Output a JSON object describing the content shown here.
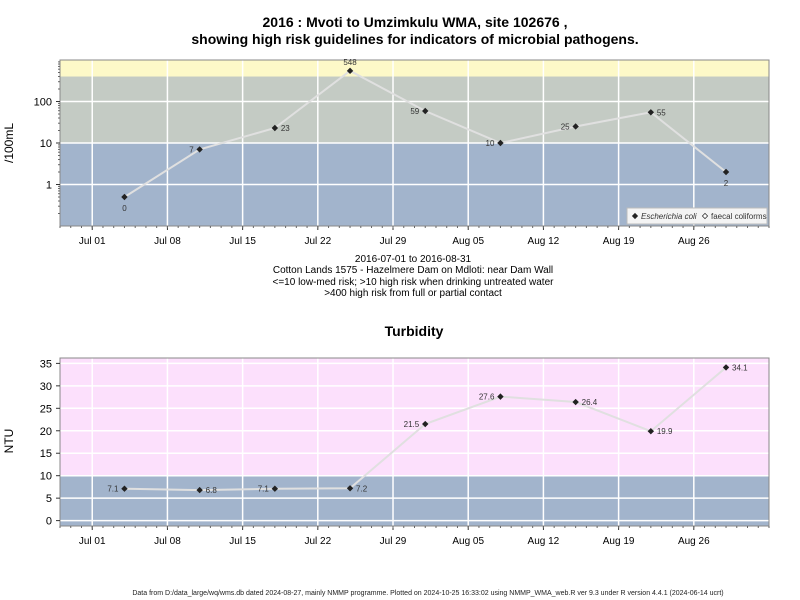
{
  "chart_data": [
    {
      "type": "line",
      "title_line1": "2016 : Mvoti to Umzimkulu WMA, site 102676 ,",
      "title_line2": "showing high risk guidelines for indicators of microbial pathogens.",
      "ylabel": "/100mL",
      "y_scale": "log10",
      "ylim": [
        0.1,
        1000
      ],
      "y_ticks": [
        1,
        10,
        100
      ],
      "y_tick_labels": [
        "1",
        "10",
        "100"
      ],
      "bands": [
        {
          "from": 0.1,
          "to": 10,
          "color": "#a2b4cc"
        },
        {
          "from": 10,
          "to": 400,
          "color": "#c4cbc4"
        },
        {
          "from": 400,
          "to": 1000,
          "color": "#fdf9c8"
        }
      ],
      "x_range": [
        "2016-06-28",
        "2016-09-02"
      ],
      "x_ticks": [
        "2016-07-01",
        "2016-07-08",
        "2016-07-15",
        "2016-07-22",
        "2016-07-29",
        "2016-08-05",
        "2016-08-12",
        "2016-08-19",
        "2016-08-26"
      ],
      "x_tick_labels": [
        "Jul 01",
        "Jul 08",
        "Jul 15",
        "Jul 22",
        "Jul 29",
        "Aug 05",
        "Aug 12",
        "Aug 19",
        "Aug 26"
      ],
      "series": [
        {
          "name": "Escherichia coli",
          "dates": [
            "2016-07-04",
            "2016-07-11",
            "2016-07-18",
            "2016-07-25",
            "2016-08-01",
            "2016-08-08",
            "2016-08-15",
            "2016-08-22",
            "2016-08-29"
          ],
          "values": [
            0.5,
            7,
            23,
            548,
            59,
            10,
            25,
            55,
            2
          ],
          "labels": [
            "0",
            "7",
            "23",
            "548",
            "59",
            "10",
            "25",
            "55",
            "2"
          ],
          "label_side": [
            "below",
            "left",
            "right",
            "above",
            "left",
            "left",
            "left",
            "right",
            "below"
          ]
        }
      ],
      "legend": [
        {
          "name": "Escherichia coli",
          "marker": "diamond-filled"
        },
        {
          "name": "faecal coliforms",
          "marker": "diamond-open"
        }
      ],
      "legend_position": "bottom-right",
      "grid": true,
      "subtitle_lines": [
        "2016-07-01 to 2016-08-31",
        "Cotton Lands 1575 - Hazelmere Dam on Mdloti: near Dam Wall",
        "<=10 low-med risk; >10 high risk when drinking untreated water",
        ">400 high risk from full or partial contact"
      ]
    },
    {
      "type": "line",
      "title": "Turbidity",
      "ylabel": "NTU",
      "ylim": [
        -1.2,
        36.2
      ],
      "y_ticks": [
        0,
        5,
        10,
        15,
        20,
        25,
        30,
        35
      ],
      "y_tick_labels": [
        "0",
        "5",
        "10",
        "15",
        "20",
        "25",
        "30",
        "35"
      ],
      "bands": [
        {
          "from": -1.2,
          "to": 10,
          "color": "#a2b4cc"
        },
        {
          "from": 10,
          "to": 36.2,
          "color": "#fce0fc"
        }
      ],
      "x_range": [
        "2016-06-28",
        "2016-09-02"
      ],
      "x_ticks": [
        "2016-07-01",
        "2016-07-08",
        "2016-07-15",
        "2016-07-22",
        "2016-07-29",
        "2016-08-05",
        "2016-08-12",
        "2016-08-19",
        "2016-08-26"
      ],
      "x_tick_labels": [
        "Jul 01",
        "Jul 08",
        "Jul 15",
        "Jul 22",
        "Jul 29",
        "Aug 05",
        "Aug 12",
        "Aug 19",
        "Aug 26"
      ],
      "series": [
        {
          "dates": [
            "2016-07-04",
            "2016-07-11",
            "2016-07-18",
            "2016-07-25",
            "2016-08-01",
            "2016-08-08",
            "2016-08-15",
            "2016-08-22",
            "2016-08-29"
          ],
          "values": [
            7.1,
            6.8,
            7.1,
            7.2,
            21.5,
            27.6,
            26.4,
            19.9,
            34.1
          ],
          "labels": [
            "7.1",
            "6.8",
            "7.1",
            "7.2",
            "21.5",
            "27.6",
            "26.4",
            "19.9",
            "34.1"
          ],
          "label_side": [
            "left",
            "right",
            "left",
            "right",
            "left",
            "left",
            "right",
            "right",
            "right"
          ]
        }
      ],
      "grid": true
    }
  ],
  "footer": "Data from D:/data_large/wq/wms.db dated 2024-08-27, mainly NMMP programme. Plotted on 2024-10-25 16:33:02 using NMMP_WMA_web.R ver 9.3 under R version 4.4.1 (2024-06-14 ucrt)",
  "colors": {
    "line": "#e0e0e0",
    "marker": "#222222",
    "grid": "#ffffff",
    "frame": "#888888"
  }
}
